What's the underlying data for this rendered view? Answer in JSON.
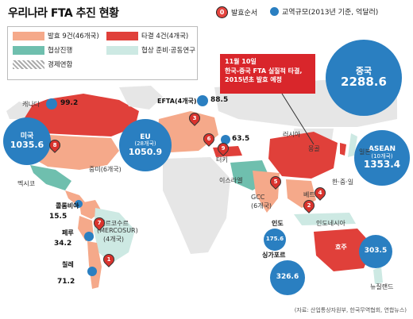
{
  "title": "우리나라 FTA 추진 현황",
  "legend_top": {
    "pin_label": "발효순서",
    "pin_glyph": "0",
    "trade_label": "교역규모(2013년 기준, 억달러)"
  },
  "legend": {
    "effective": "발효 9건(46개국)",
    "concluded": "타결 4건(4개국)",
    "negotiating": "협상진행",
    "preparing": "협상 준비·공동연구",
    "economic_union": "경제연합"
  },
  "colors": {
    "effective": "#f5a98a",
    "concluded": "#e0403a",
    "negotiating": "#6fbfae",
    "preparing": "#cde9e3",
    "land": "#e6e6e6",
    "sea": "#ffffff",
    "bubble": "#2a7fc1"
  },
  "callout": {
    "line1": "11월 10일",
    "line2": "한국-중국 FTA 실질적 타결,",
    "line3": "2015년초 발효 예정"
  },
  "partners": [
    {
      "id": "china",
      "name": "중국",
      "sub": "",
      "value": "2288.6"
    },
    {
      "id": "usa",
      "name": "미국",
      "sub": "",
      "value": "1035.6"
    },
    {
      "id": "eu",
      "name": "EU",
      "sub": "(28개국)",
      "value": "1050.9"
    },
    {
      "id": "asean",
      "name": "ASEAN",
      "sub": "(10개국)",
      "value": "1353.4"
    },
    {
      "id": "australia",
      "name": "호주",
      "sub": "",
      "value": "303.5"
    },
    {
      "id": "singapore",
      "name": "싱가포르",
      "sub": "",
      "value": "326.6"
    },
    {
      "id": "india",
      "name": "인도",
      "sub": "",
      "value": "175.6"
    },
    {
      "id": "canada",
      "name": "캐나다",
      "sub": "",
      "value": "99.2"
    },
    {
      "id": "efta",
      "name": "EFTA(4개국)",
      "sub": "",
      "value": "88.5"
    },
    {
      "id": "turkey",
      "name": "터키",
      "sub": "",
      "value": "63.5"
    },
    {
      "id": "colombia",
      "name": "콜롬비아",
      "sub": "",
      "value": "15.5"
    },
    {
      "id": "peru",
      "name": "페루",
      "sub": "",
      "value": "34.2"
    },
    {
      "id": "chile",
      "name": "칠레",
      "sub": "",
      "value": "71.2"
    }
  ],
  "pins": [
    "1",
    "2",
    "3",
    "4",
    "5",
    "6",
    "7",
    "8",
    "9"
  ],
  "region_labels": {
    "russia": "러시아",
    "mongolia": "몽골",
    "japan": "일본",
    "kcj": "한·중·일",
    "mexico": "멕시코",
    "central_america": "중미(6개국)",
    "mercosur": "메르코수르",
    "mercosur2": "(MERCOSUR)",
    "mercosur3": "(4개국)",
    "israel": "이스라엘",
    "gcc": "GCC",
    "gcc2": "(6개국)",
    "vietnam": "베트남",
    "indonesia": "인도네시아",
    "nz": "뉴질랜드",
    "canada_name": "캐나다"
  },
  "source": "(자료: 산업통상자원부, 한국무역협회, 연합뉴스)"
}
